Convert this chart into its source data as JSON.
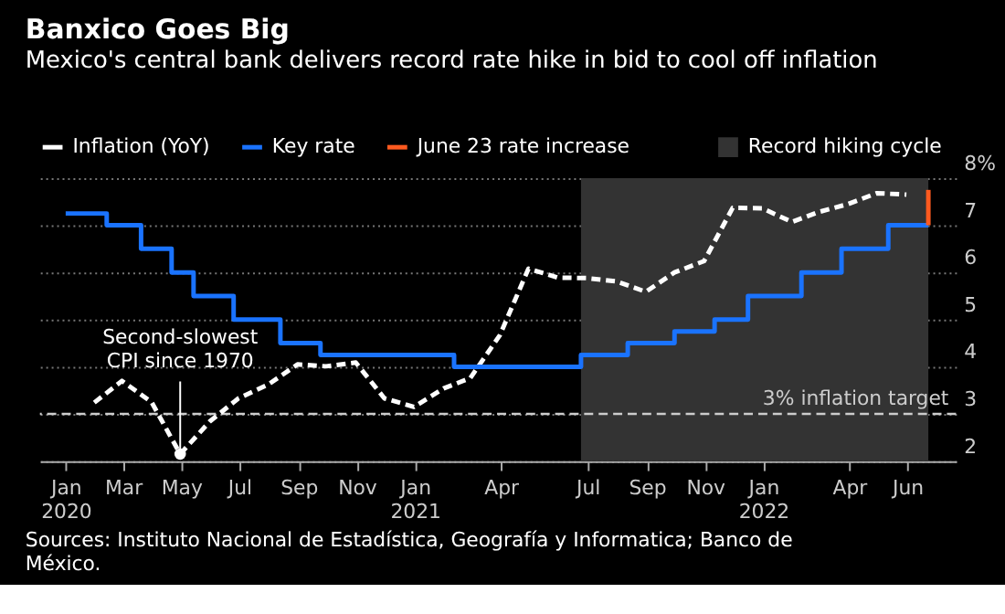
{
  "chart_data": {
    "type": "line",
    "title": "Banxico Goes Big",
    "subtitle": "Mexico's central bank delivers record rate hike in bid to cool off inflation",
    "series": [
      {
        "name": "Inflation (YoY)",
        "type": "line",
        "color": "#ffffff",
        "line_style": "dashed",
        "x": [
          "2020-01-31",
          "2020-02-29",
          "2020-03-31",
          "2020-04-30",
          "2020-05-31",
          "2020-06-30",
          "2020-07-31",
          "2020-08-31",
          "2020-09-30",
          "2020-10-31",
          "2020-11-30",
          "2020-12-31",
          "2021-01-31",
          "2021-02-28",
          "2021-03-31",
          "2021-04-30",
          "2021-05-31",
          "2021-06-30",
          "2021-07-31",
          "2021-08-31",
          "2021-09-30",
          "2021-10-31",
          "2021-11-30",
          "2021-12-31",
          "2022-01-31",
          "2022-02-28",
          "2022-03-31",
          "2022-04-30",
          "2022-05-31"
        ],
        "values": [
          3.24,
          3.7,
          3.25,
          2.15,
          2.84,
          3.33,
          3.62,
          4.05,
          4.01,
          4.09,
          3.33,
          3.15,
          3.54,
          3.76,
          4.67,
          6.08,
          5.89,
          5.88,
          5.81,
          5.59,
          6.0,
          6.24,
          7.37,
          7.36,
          7.07,
          7.28,
          7.45,
          7.68,
          7.65
        ]
      },
      {
        "name": "Key rate",
        "type": "step",
        "color": "#1a73ff",
        "line_style": "solid",
        "x": [
          "2020-01-01",
          "2020-02-13",
          "2020-03-20",
          "2020-04-21",
          "2020-05-14",
          "2020-06-25",
          "2020-08-13",
          "2020-09-24",
          "2021-02-11",
          "2021-06-24",
          "2021-08-12",
          "2021-09-30",
          "2021-11-11",
          "2021-12-16",
          "2022-02-10",
          "2022-03-24",
          "2022-05-12",
          "2022-06-23"
        ],
        "values": [
          7.25,
          7.0,
          6.5,
          6.0,
          5.5,
          5.0,
          4.5,
          4.25,
          4.0,
          4.25,
          4.5,
          4.75,
          5.0,
          5.5,
          6.0,
          6.5,
          7.0,
          7.0
        ]
      },
      {
        "name": "June 23 rate increase",
        "type": "line",
        "color": "#ff5a1f",
        "line_style": "solid",
        "x": [
          "2022-06-23",
          "2022-06-23"
        ],
        "values": [
          7.0,
          7.75
        ]
      }
    ],
    "bands": [
      {
        "axis": "x",
        "from": "2021-06-24",
        "to": "2022-06-23",
        "label": "Record hiking cycle",
        "color": "#333333"
      }
    ],
    "ref_lines": [
      {
        "axis": "y",
        "value": 3,
        "label": "3% inflation target",
        "line_style": "dashed",
        "color": "#cccccc"
      }
    ],
    "annotations": [
      {
        "text": "Second-slowest\nCPI since 1970",
        "x": "2020-04-30",
        "y": 2.15
      },
      "Sources: Instituto Nacional de Estadística, Geografía y Informatica; Banco de\nMéxico."
    ],
    "xlim": [
      "2019-12-05",
      "2022-07-22"
    ],
    "xticks": [
      {
        "value": "2020-01-01",
        "label": "Jan 2020"
      },
      {
        "value": "2020-03-01",
        "label": "Mar"
      },
      {
        "value": "2020-05-01",
        "label": "May"
      },
      {
        "value": "2020-07-01",
        "label": "Jul"
      },
      {
        "value": "2020-09-01",
        "label": "Sep"
      },
      {
        "value": "2020-11-01",
        "label": "Nov"
      },
      {
        "value": "2021-01-01",
        "label": "Jan 2021"
      },
      {
        "value": "2021-04-01",
        "label": "Apr"
      },
      {
        "value": "2021-07-01",
        "label": "Jul"
      },
      {
        "value": "2021-09-01",
        "label": "Sep"
      },
      {
        "value": "2021-11-01",
        "label": "Nov"
      },
      {
        "value": "2022-01-01",
        "label": "Jan 2022"
      },
      {
        "value": "2022-04-01",
        "label": "Apr"
      },
      {
        "value": "2022-06-01",
        "label": "Jun"
      }
    ],
    "ylim": [
      2,
      8
    ],
    "yticks": [
      2,
      3,
      4,
      5,
      6,
      7,
      {
        "value": 8,
        "label": "8%"
      }
    ],
    "grid": "y",
    "legend": "top left",
    "marker": "none"
  }
}
